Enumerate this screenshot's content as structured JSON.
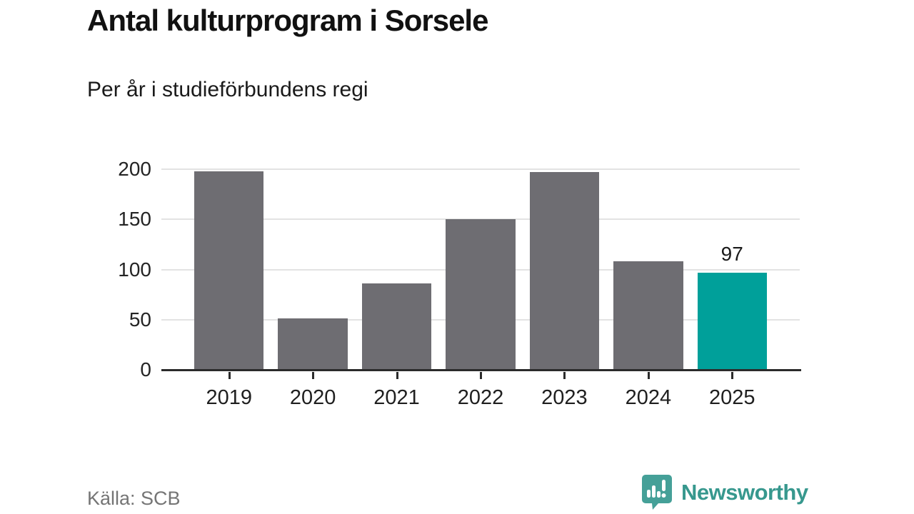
{
  "header": {
    "title": "Antal kulturprogram i Sorsele",
    "subtitle": "Per år i studieförbundens regi"
  },
  "footer": {
    "source": "Källa: SCB",
    "brand": "Newsworthy",
    "brand_color": "#37988e"
  },
  "chart_data": {
    "type": "bar",
    "categories": [
      "2019",
      "2020",
      "2021",
      "2022",
      "2023",
      "2024",
      "2025"
    ],
    "values": [
      198,
      51,
      86,
      150,
      197,
      108,
      97
    ],
    "title": "Antal kulturprogram i Sorsele",
    "subtitle": "Per år i studieförbundens regi",
    "xlabel": "",
    "ylabel": "",
    "ylim": [
      0,
      200
    ],
    "yticks": [
      0,
      50,
      100,
      150,
      200
    ],
    "grid": true,
    "legend": "none",
    "highlight_category": "2025",
    "data_label": {
      "category": "2025",
      "text": "97"
    },
    "colors": {
      "bar": "#6e6d72",
      "highlight": "#00a09a",
      "gridline": "#e3e3e3",
      "axis": "#2b2b2b"
    }
  }
}
